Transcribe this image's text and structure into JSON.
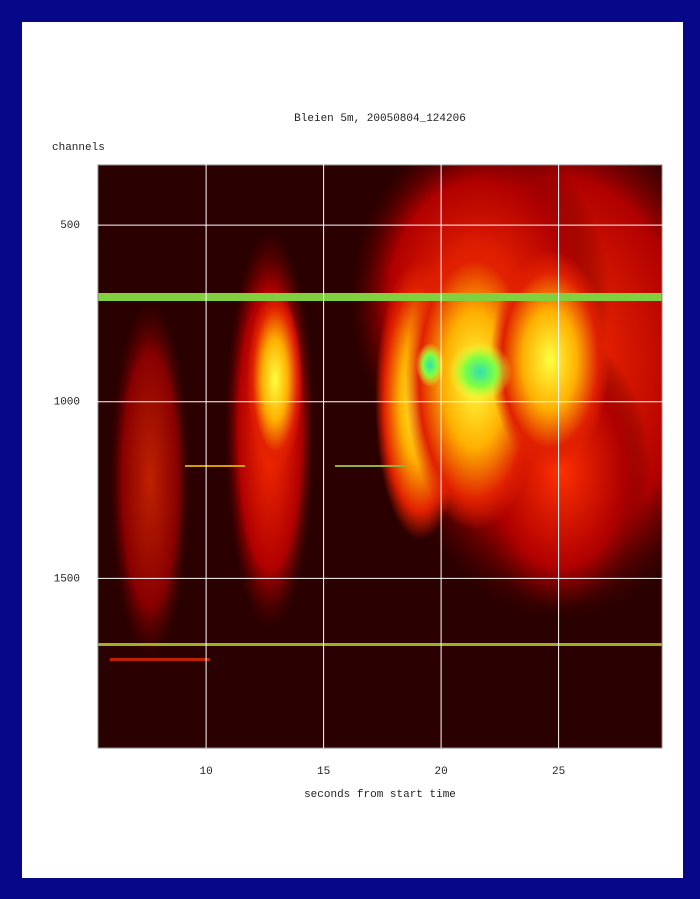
{
  "chart_data": {
    "type": "spectrogram",
    "title": "Bleien 5m, 20050804_124206",
    "x_label": "seconds from start time",
    "y_label": "channels",
    "xlim": [
      5.4,
      29.4
    ],
    "xticks": [
      10,
      15,
      20,
      25
    ],
    "ylim": [
      1980,
      330
    ],
    "yticks": [
      500,
      1000,
      1500
    ],
    "grid": true
  }
}
